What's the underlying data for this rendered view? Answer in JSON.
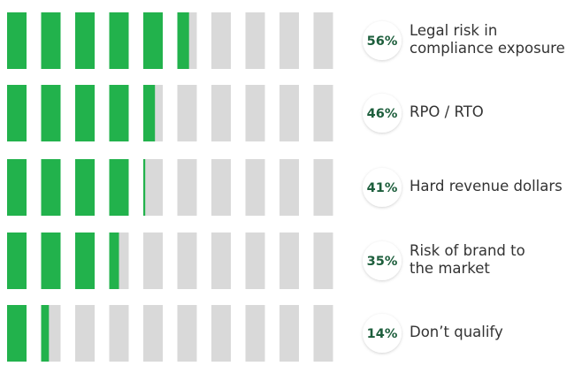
{
  "chart_data": {
    "type": "segmented-bar",
    "categories": [
      "Legal risk in\ncompliance exposure",
      "RPO / RTO",
      "Hard revenue dollars",
      "Risk of brand to\nthe market",
      "Don’t qualify"
    ],
    "values": [
      56,
      46,
      41,
      35,
      14
    ],
    "value_labels": [
      "56%",
      "46%",
      "41%",
      "35%",
      "14%"
    ],
    "xlim": [
      0,
      100
    ],
    "color": "#22b24c",
    "track_color": "#d9d9d9",
    "label_color": "#1d5e3c"
  }
}
